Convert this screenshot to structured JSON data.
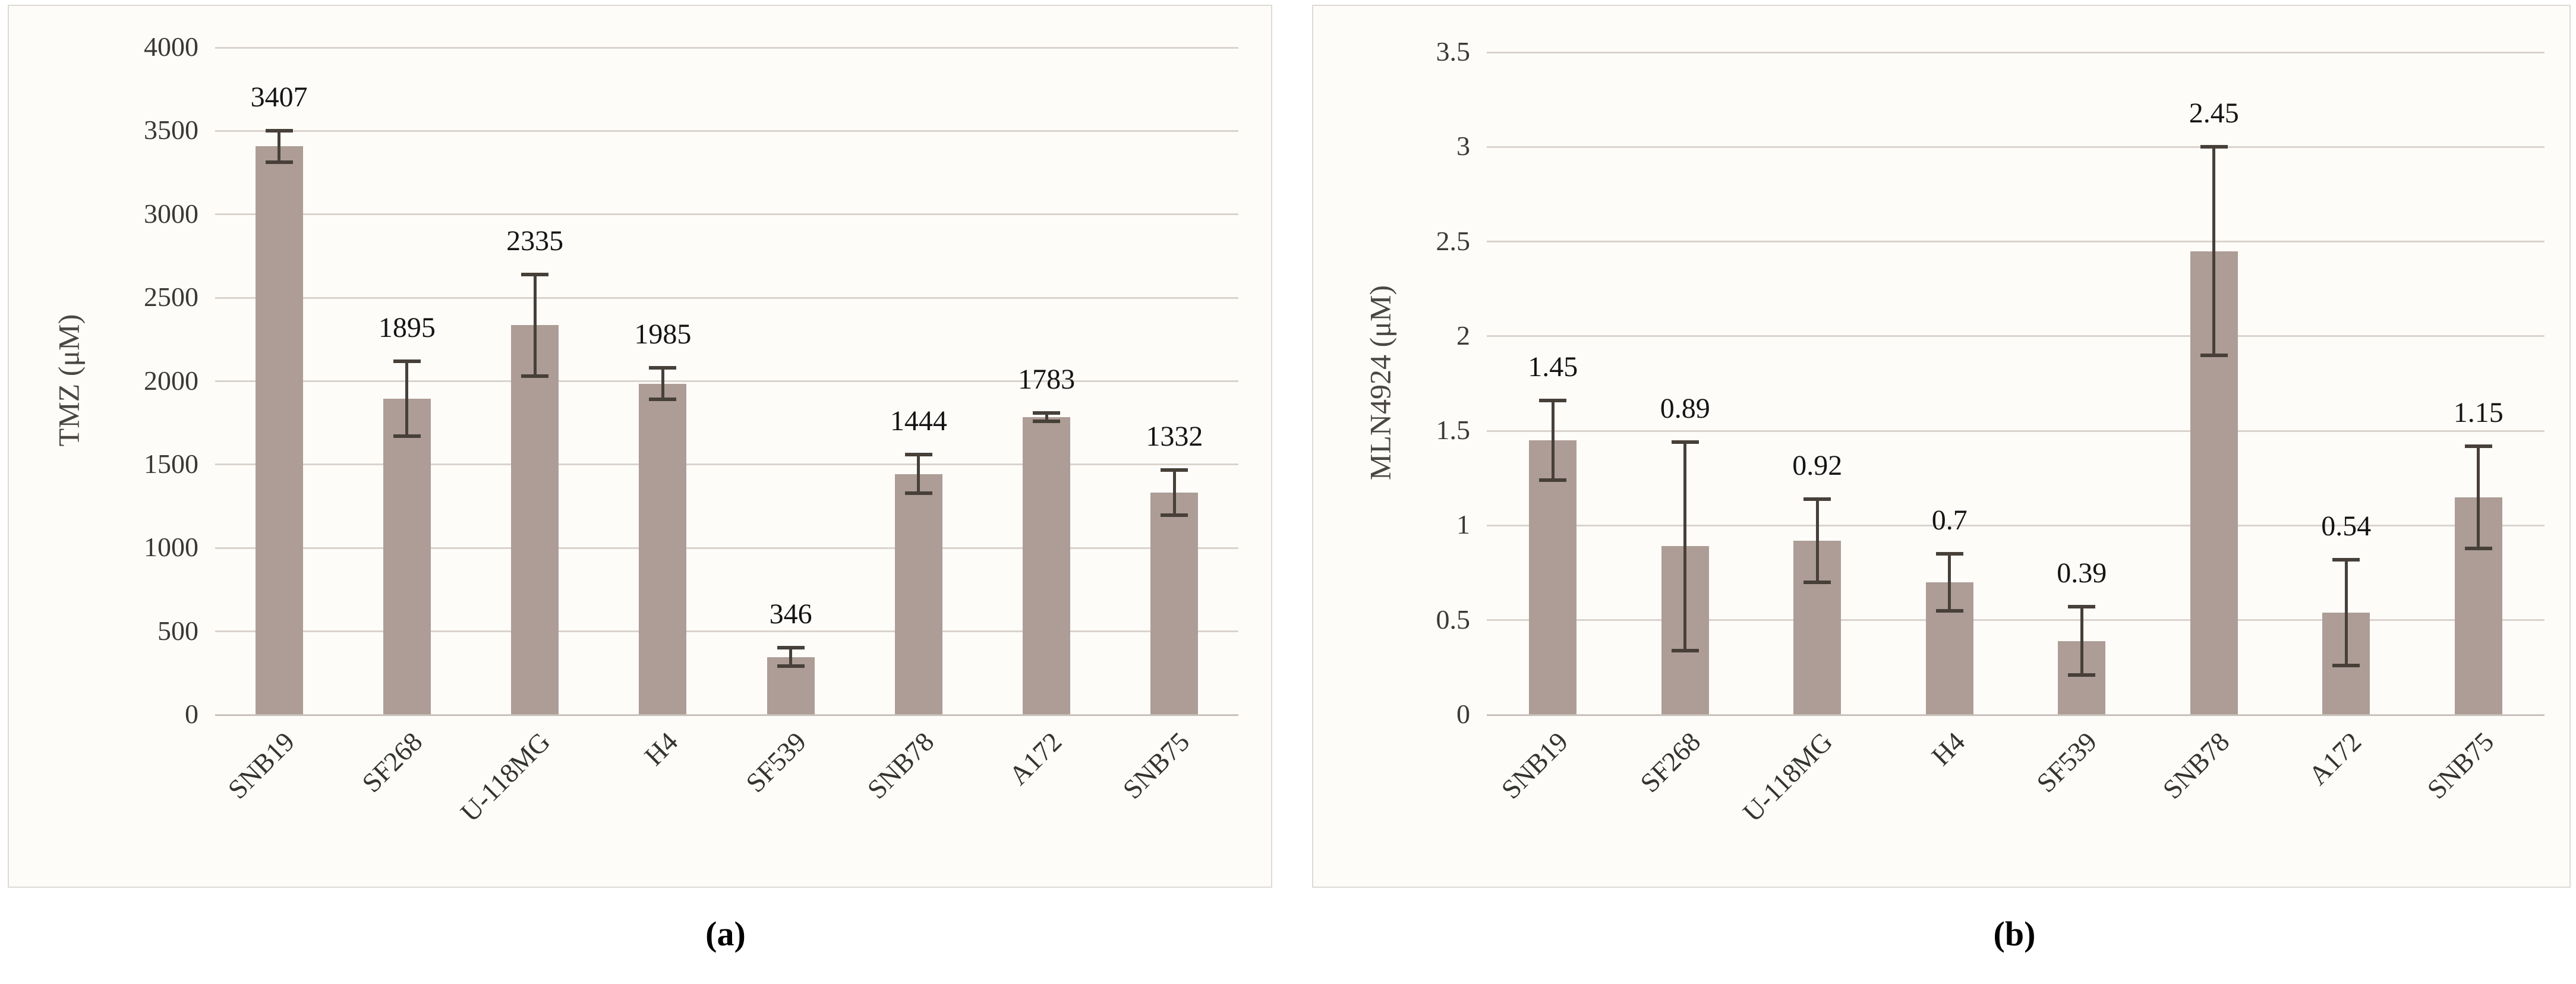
{
  "figure": {
    "description": "Two-panel bar figure of drug sensitivity (IC50) across glioma cell lines",
    "captions": {
      "a": "(a)",
      "b": "(b)"
    }
  },
  "palette": {
    "bar": "#ad9d96",
    "error_bar": "#474039",
    "gridline": "#dad3cd",
    "axis_line": "#c9c1bb",
    "tick_text": "#3b3936",
    "label_text": "#141414",
    "axis_title_text": "#4a4641",
    "xlabel_text": "#333330",
    "panel_bg": "#fdfcf9",
    "panel_border": "#dddad5",
    "page_bg": "#ffffff"
  },
  "chart_data": [
    {
      "panel": "a",
      "type": "bar",
      "title": "",
      "xlabel": "",
      "ylabel": "TMZ (μM)",
      "caption": "(a)",
      "categories": [
        "SNB19",
        "SF268",
        "U-118MG",
        "H4",
        "SF539",
        "SNB78",
        "A172",
        "SNB75"
      ],
      "values": [
        3407,
        1895,
        2335,
        1985,
        346,
        1444,
        1783,
        1332
      ],
      "data_labels": [
        "3407",
        "1895",
        "2335",
        "1985",
        "346",
        "1444",
        "1783",
        "1332"
      ],
      "errors": [
        95,
        225,
        305,
        95,
        55,
        115,
        25,
        135
      ],
      "ylim": [
        0,
        4000
      ],
      "ytick_values": [
        0,
        500,
        1000,
        1500,
        2000,
        2500,
        3000,
        3500,
        4000
      ],
      "ytick_labels": [
        "0",
        "500",
        "1000",
        "1500",
        "2000",
        "2500",
        "3000",
        "3500",
        "4000"
      ],
      "grid": true,
      "legend": null
    },
    {
      "panel": "b",
      "type": "bar",
      "title": "",
      "xlabel": "",
      "ylabel": "MLN4924 (μM)",
      "caption": "(b)",
      "categories": [
        "SNB19",
        "SF268",
        "U-118MG",
        "H4",
        "SF539",
        "SNB78",
        "A172",
        "SNB75"
      ],
      "values": [
        1.45,
        0.89,
        0.92,
        0.7,
        0.39,
        2.45,
        0.54,
        1.15
      ],
      "data_labels": [
        "1.45",
        "0.89",
        "0.92",
        "0.7",
        "0.39",
        "2.45",
        "0.54",
        "1.15"
      ],
      "errors": [
        0.21,
        0.55,
        0.22,
        0.15,
        0.18,
        0.55,
        0.28,
        0.27
      ],
      "ylim": [
        0,
        3.5
      ],
      "ytick_values": [
        0,
        0.5,
        1,
        1.5,
        2,
        2.5,
        3,
        3.5
      ],
      "ytick_labels": [
        "0",
        "0.5",
        "1",
        "1.5",
        "2",
        "2.5",
        "3",
        "3.5"
      ],
      "grid": true,
      "legend": null
    }
  ]
}
